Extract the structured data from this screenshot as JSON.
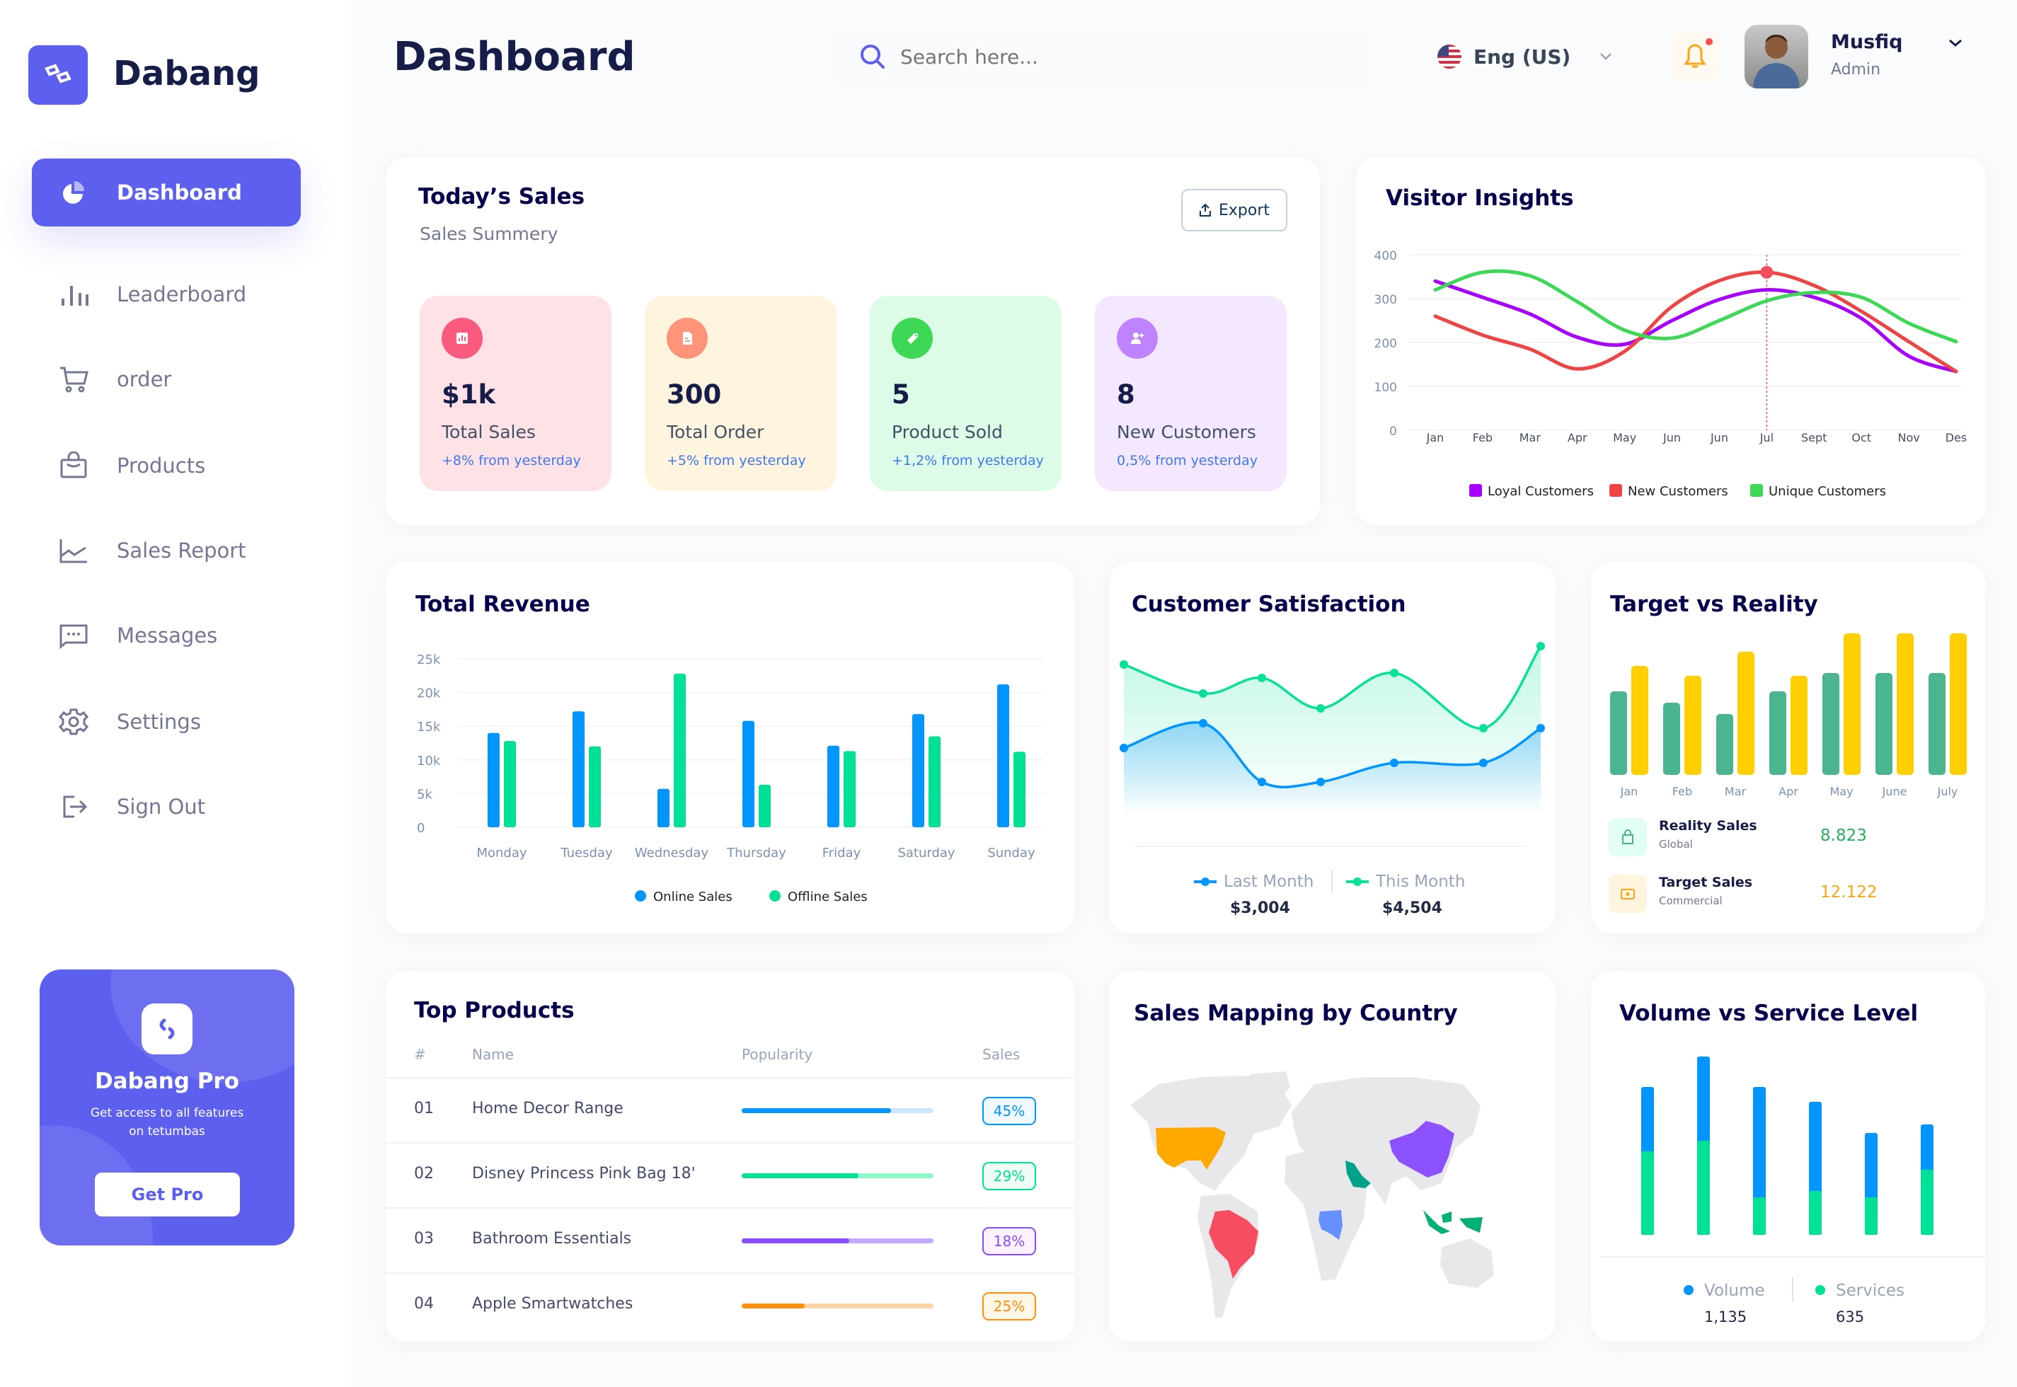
{
  "brand": {
    "name": "Dabang"
  },
  "sidebar": {
    "items": [
      {
        "label": "Dashboard",
        "icon": "pie-chart-icon",
        "active": true
      },
      {
        "label": "Leaderboard",
        "icon": "bar-chart-icon"
      },
      {
        "label": "order",
        "icon": "cart-icon"
      },
      {
        "label": "Products",
        "icon": "bag-icon"
      },
      {
        "label": "Sales Report",
        "icon": "line-chart-icon"
      },
      {
        "label": "Messages",
        "icon": "message-icon"
      },
      {
        "label": "Settings",
        "icon": "gear-icon"
      },
      {
        "label": "Sign Out",
        "icon": "sign-out-icon"
      }
    ]
  },
  "promo": {
    "title": "Dabang Pro",
    "description": "Get access to all features on tetumbas",
    "button": "Get Pro"
  },
  "header": {
    "title": "Dashboard",
    "search_placeholder": "Search here...",
    "language": "Eng (US)",
    "user_name": "Musfiq",
    "user_role": "Admin",
    "notification_dot": true
  },
  "colors": {
    "accent": "#5D5FEF",
    "text": "#151D48",
    "muted": "#737791"
  },
  "todays_sales": {
    "title": "Today’s Sales",
    "subtitle": "Sales Summery",
    "export_label": "Export",
    "cards": [
      {
        "value": "$1k",
        "label": "Total Sales",
        "change": "+8% from yesterday",
        "bg": "#FFE2E5",
        "icon_bg": "#FA5A7D",
        "icon": "bar-chart-icon"
      },
      {
        "value": "300",
        "label": "Total Order",
        "change": "+5% from yesterday",
        "bg": "#FFF4DE",
        "icon_bg": "#FF947A",
        "icon": "document-icon"
      },
      {
        "value": "5",
        "label": "Product Sold",
        "change": "+1,2% from yesterday",
        "bg": "#DCFCE7",
        "icon_bg": "#3CD856",
        "icon": "tag-icon"
      },
      {
        "value": "8",
        "label": "New Customers",
        "change": "0,5% from yesterday",
        "bg": "#F3E8FF",
        "icon_bg": "#BF83FF",
        "icon": "user-add-icon"
      }
    ]
  },
  "chart_data": [
    {
      "id": "visitor_insights",
      "type": "line",
      "title": "Visitor Insights",
      "categories": [
        "Jan",
        "Feb",
        "Mar",
        "Apr",
        "May",
        "Jun",
        "Jun",
        "Jul",
        "Sept",
        "Oct",
        "Nov",
        "Des"
      ],
      "ylim": [
        0,
        400
      ],
      "yticks": [
        0,
        100,
        200,
        300,
        400
      ],
      "grid": true,
      "legend": "bottom",
      "highlight": {
        "series": "New Customers",
        "category": "Jul"
      },
      "series": [
        {
          "name": "Loyal Customers",
          "color": "#A700FF",
          "values": [
            340,
            303,
            265,
            212,
            196,
            250,
            298,
            320,
            303,
            255,
            169,
            134
          ]
        },
        {
          "name": "New Customers",
          "color": "#EF4444",
          "values": [
            260,
            217,
            185,
            140,
            180,
            282,
            341,
            360,
            330,
            271,
            202,
            134
          ]
        },
        {
          "name": "Unique Customers",
          "color": "#3CD856",
          "values": [
            320,
            360,
            352,
            293,
            228,
            210,
            250,
            295,
            314,
            303,
            244,
            202
          ]
        }
      ]
    },
    {
      "id": "total_revenue",
      "type": "bar",
      "title": "Total Revenue",
      "categories": [
        "Monday",
        "Tuesday",
        "Wednesday",
        "Thursday",
        "Friday",
        "Saturday",
        "Sunday"
      ],
      "ylim": [
        0,
        25000
      ],
      "yticks": [
        "0",
        "5k",
        "10k",
        "15k",
        "20k",
        "25k"
      ],
      "grid": true,
      "legend": "bottom",
      "series": [
        {
          "name": "Online Sales",
          "color": "#0095FF",
          "values": [
            14000,
            17200,
            5700,
            15800,
            12100,
            16800,
            21200
          ]
        },
        {
          "name": "Offline Sales",
          "color": "#00E096",
          "values": [
            12800,
            12000,
            22800,
            6300,
            11300,
            13500,
            11200
          ]
        }
      ]
    },
    {
      "id": "customer_satisfaction",
      "type": "area",
      "title": "Customer Satisfaction",
      "series": [
        {
          "name": "Last Month",
          "color": "#0095FF",
          "total": "$3,004",
          "values": [
            93,
            128,
            45,
            45,
            72,
            72,
            121
          ]
        },
        {
          "name": "This Month",
          "color": "#07E098",
          "total": "$4,504",
          "values": [
            211,
            170,
            192,
            149,
            199,
            121,
            237
          ]
        }
      ]
    },
    {
      "id": "target_vs_reality",
      "type": "bar",
      "title": "Target vs Reality",
      "categories": [
        "Jan",
        "Feb",
        "Mar",
        "Apr",
        "May",
        "June",
        "July"
      ],
      "series": [
        {
          "name": "Reality Sales",
          "color": "#4AB58E",
          "values": [
            59,
            51,
            43,
            59,
            72,
            72,
            72
          ]
        },
        {
          "name": "Target Sales",
          "color": "#FFCF00",
          "values": [
            77,
            70,
            87,
            70,
            100,
            100,
            100
          ]
        }
      ],
      "summary": [
        {
          "name": "Reality Sales",
          "sub": "Global",
          "value": "8.823",
          "color": "#27AE60",
          "bg": "#E2FFF3",
          "icon": "shopping-bag-icon"
        },
        {
          "name": "Target Sales",
          "sub": "Commercial",
          "value": "12.122",
          "color": "#FFA412",
          "bg": "#FFF4DE",
          "icon": "ticket-icon"
        }
      ]
    },
    {
      "id": "volume_vs_service",
      "type": "stacked-bar",
      "title": "Volume vs Service Level",
      "series": [
        {
          "name": "Volume",
          "color": "#0095FF",
          "total": "1,135",
          "values": [
            91,
            119,
            156,
            126,
            91,
            64
          ]
        },
        {
          "name": "Services",
          "color": "#00E096",
          "total": "635",
          "values": [
            118,
            133,
            53,
            62,
            53,
            92
          ]
        }
      ]
    }
  ],
  "top_products": {
    "title": "Top Products",
    "columns": [
      "#",
      "Name",
      "Popularity",
      "Sales"
    ],
    "rows": [
      {
        "rank": "01",
        "name": "Home Decor Range",
        "popularity": 78,
        "sales": "45%",
        "color": "#0095FF",
        "track": "#CDE7FF",
        "badge_bg": "#F0F9FF"
      },
      {
        "rank": "02",
        "name": "Disney Princess Pink Bag 18'",
        "popularity": 61,
        "sales": "29%",
        "color": "#00E096",
        "track": "#8CFAC7",
        "badge_bg": "#F0FDF4"
      },
      {
        "rank": "03",
        "name": "Bathroom Essentials",
        "popularity": 56,
        "sales": "18%",
        "color": "#884DFF",
        "track": "#C5A8FF",
        "badge_bg": "#FBF1FF"
      },
      {
        "rank": "04",
        "name": "Apple Smartwatches",
        "popularity": 33,
        "sales": "25%",
        "color": "#FF8F0D",
        "track": "#FFD5A4",
        "badge_bg": "#FEF6E6"
      }
    ]
  },
  "sales_mapping": {
    "title": "Sales Mapping by Country",
    "highlighted": [
      {
        "country": "United States",
        "color": "#FFA800"
      },
      {
        "country": "Brazil",
        "color": "#F64E60"
      },
      {
        "country": "Saudi Arabia",
        "color": "#00A389"
      },
      {
        "country": "DR Congo",
        "color": "#6790FF"
      },
      {
        "country": "China",
        "color": "#8C52FF"
      },
      {
        "country": "Indonesia",
        "color": "#00B074"
      }
    ]
  }
}
